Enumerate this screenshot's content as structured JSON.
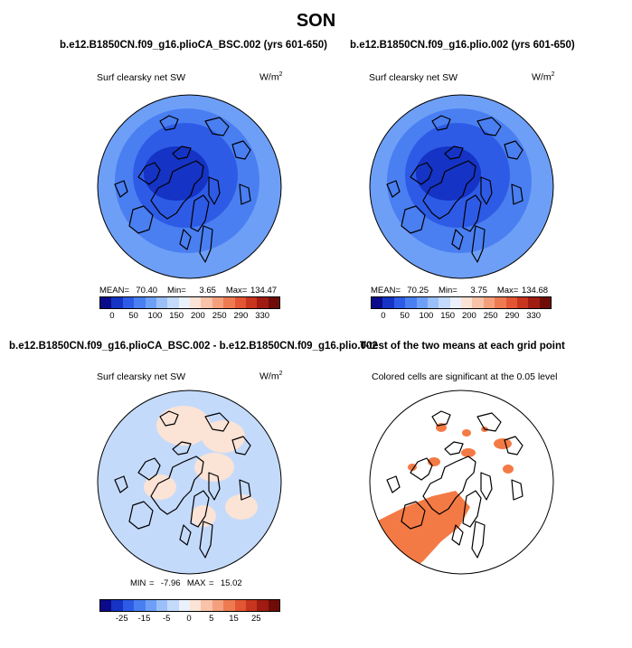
{
  "title": "SON",
  "panels": [
    {
      "id": "panel-top-left",
      "case": "b.e12.B1850CN.f09_g16.plioCA_BSC.002 (yrs 601-650)",
      "variable": "Surf clearsky net SW",
      "units_base": "W/m",
      "units_exp": "2",
      "stats": {
        "mean_label": "MEAN=",
        "mean": "70.40",
        "min_label": "Min=",
        "min": "3.65",
        "max_label": "Max=",
        "max": "134.47"
      }
    },
    {
      "id": "panel-top-right",
      "case": "b.e12.B1850CN.f09_g16.plio.002 (yrs 601-650)",
      "variable": "Surf clearsky net SW",
      "units_base": "W/m",
      "units_exp": "2",
      "stats": {
        "mean_label": "MEAN=",
        "mean": "70.25",
        "min_label": "Min=",
        "min": "3.75",
        "max_label": "Max=",
        "max": "134.68"
      }
    },
    {
      "id": "panel-bottom-left",
      "case": "b.e12.B1850CN.f09_g16.plioCA_BSC.002 - b.e12.B1850CN.f09_g16.plio.002",
      "variable": "Surf clearsky net SW",
      "units_base": "W/m",
      "units_exp": "2",
      "stats": {
        "min_label": "MIN =",
        "min": "-7.96",
        "max_label": "MAX =",
        "max": "15.02"
      }
    },
    {
      "id": "panel-bottom-right",
      "case": "T-test of the two means at each grid point",
      "variable": "Colored cells are significant at the 0.05 level"
    }
  ],
  "colorbar_abs": {
    "colors": [
      "#0a0a8a",
      "#1533c4",
      "#2e5be6",
      "#4a7ff2",
      "#6e9ff7",
      "#9bbff9",
      "#c4dafb",
      "#eaf1fc",
      "#fbe3d6",
      "#f8c3a8",
      "#f4a07d",
      "#ee7a52",
      "#e25633",
      "#c8351f",
      "#a01b12",
      "#700c08"
    ],
    "tick_labels": [
      "0",
      "50",
      "100",
      "150",
      "200",
      "250",
      "290",
      "330"
    ]
  },
  "colorbar_diff": {
    "colors": [
      "#0a0a8a",
      "#1533c4",
      "#2e5be6",
      "#4a7ff2",
      "#6e9ff7",
      "#9bbff9",
      "#c4dafb",
      "#eaf1fc",
      "#fbe3d6",
      "#f8c3a8",
      "#f4a07d",
      "#ee7a52",
      "#e25633",
      "#c8351f",
      "#a01b12",
      "#700c08"
    ],
    "tick_labels": [
      "-25",
      "-15",
      "-5",
      "0",
      "5",
      "15",
      "25"
    ]
  },
  "map_colors": {
    "outer": "#6e9ff7",
    "ring2": "#4a7ff2",
    "ring3": "#2e5be6",
    "center": "#1533c4",
    "diff_base": "#c4dafb",
    "diff_pos": "#fbe3d6",
    "ttest": "#f47a45",
    "coast": "#000000"
  }
}
